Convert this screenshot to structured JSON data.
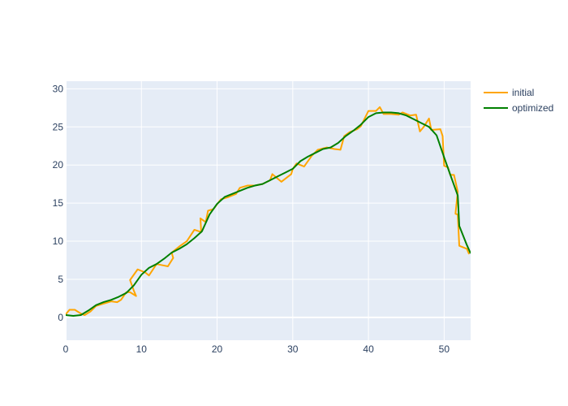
{
  "chart_data": {
    "type": "line",
    "title": "",
    "xlabel": "",
    "ylabel": "",
    "xlim": [
      0,
      53.5
    ],
    "ylim": [
      -3,
      31
    ],
    "x_ticks": [
      0,
      10,
      20,
      30,
      40,
      50
    ],
    "y_ticks": [
      0,
      5,
      10,
      15,
      20,
      25,
      30
    ],
    "grid": true,
    "legend_position": "top-right",
    "plot_background": "#e5ecf6",
    "series": [
      {
        "name": "initial",
        "color": "#ffa500",
        "points": [
          [
            0,
            0.4
          ],
          [
            0.5,
            1.0
          ],
          [
            1.2,
            1.0
          ],
          [
            2.0,
            0.5
          ],
          [
            2.5,
            0.3
          ],
          [
            3.3,
            0.8
          ],
          [
            4.0,
            1.5
          ],
          [
            5.0,
            1.8
          ],
          [
            6.0,
            2.1
          ],
          [
            6.8,
            2.0
          ],
          [
            7.3,
            2.3
          ],
          [
            8.0,
            3.3
          ],
          [
            8.5,
            3.3
          ],
          [
            9.3,
            2.8
          ],
          [
            9.0,
            3.5
          ],
          [
            8.5,
            4.9
          ],
          [
            9.5,
            6.3
          ],
          [
            10.5,
            5.9
          ],
          [
            11.0,
            5.5
          ],
          [
            12.0,
            7.0
          ],
          [
            13.0,
            6.8
          ],
          [
            13.5,
            6.7
          ],
          [
            14.2,
            7.8
          ],
          [
            14.0,
            8.5
          ],
          [
            15.0,
            9.3
          ],
          [
            16.0,
            10.0
          ],
          [
            17.0,
            11.5
          ],
          [
            17.9,
            11.2
          ],
          [
            17.8,
            13.0
          ],
          [
            18.5,
            12.5
          ],
          [
            18.8,
            14.0
          ],
          [
            19.5,
            14.2
          ],
          [
            20.5,
            15.5
          ],
          [
            21.5,
            15.8
          ],
          [
            22.5,
            16.2
          ],
          [
            23.0,
            17.0
          ],
          [
            24.0,
            17.3
          ],
          [
            25.0,
            17.3
          ],
          [
            26.0,
            17.5
          ],
          [
            27.0,
            18.0
          ],
          [
            27.3,
            18.8
          ],
          [
            28.5,
            17.8
          ],
          [
            29.8,
            18.8
          ],
          [
            30.0,
            19.5
          ],
          [
            30.5,
            20.2
          ],
          [
            31.0,
            20.0
          ],
          [
            31.5,
            19.8
          ],
          [
            32.5,
            21.2
          ],
          [
            33.3,
            22.0
          ],
          [
            34.5,
            22.3
          ],
          [
            35.5,
            22.1
          ],
          [
            36.3,
            22.0
          ],
          [
            36.8,
            23.8
          ],
          [
            37.5,
            24.3
          ],
          [
            38.5,
            24.7
          ],
          [
            39.0,
            25.1
          ],
          [
            40.0,
            27.1
          ],
          [
            41.0,
            27.1
          ],
          [
            41.5,
            27.6
          ],
          [
            42.0,
            26.7
          ],
          [
            43.0,
            26.7
          ],
          [
            44.0,
            26.6
          ],
          [
            44.5,
            26.9
          ],
          [
            45.5,
            26.5
          ],
          [
            46.3,
            26.6
          ],
          [
            46.8,
            24.4
          ],
          [
            47.3,
            25.0
          ],
          [
            48.0,
            26.1
          ],
          [
            48.3,
            24.6
          ],
          [
            49.5,
            24.7
          ],
          [
            49.8,
            23.8
          ],
          [
            50.0,
            19.9
          ],
          [
            50.5,
            19.7
          ],
          [
            50.8,
            18.7
          ],
          [
            51.3,
            18.7
          ],
          [
            51.8,
            16.5
          ],
          [
            51.5,
            13.6
          ],
          [
            51.8,
            13.5
          ],
          [
            52.0,
            9.4
          ],
          [
            53.0,
            9.0
          ],
          [
            53.3,
            8.3
          ]
        ]
      },
      {
        "name": "optimized",
        "color": "#008000",
        "points": [
          [
            0,
            0.3
          ],
          [
            1.0,
            0.2
          ],
          [
            2.0,
            0.3
          ],
          [
            3.0,
            0.9
          ],
          [
            4.0,
            1.6
          ],
          [
            5.0,
            2.0
          ],
          [
            6.0,
            2.3
          ],
          [
            7.0,
            2.7
          ],
          [
            8.0,
            3.2
          ],
          [
            9.0,
            4.2
          ],
          [
            10.0,
            5.6
          ],
          [
            11.0,
            6.5
          ],
          [
            12.0,
            7.0
          ],
          [
            13.0,
            7.7
          ],
          [
            14.0,
            8.5
          ],
          [
            15.0,
            9.0
          ],
          [
            16.0,
            9.6
          ],
          [
            17.0,
            10.4
          ],
          [
            18.0,
            11.3
          ],
          [
            19.0,
            13.5
          ],
          [
            20.0,
            14.9
          ],
          [
            21.0,
            15.8
          ],
          [
            22.0,
            16.2
          ],
          [
            23.0,
            16.6
          ],
          [
            24.0,
            17.0
          ],
          [
            25.0,
            17.3
          ],
          [
            26.0,
            17.5
          ],
          [
            27.0,
            18.0
          ],
          [
            28.0,
            18.5
          ],
          [
            29.0,
            19.0
          ],
          [
            30.0,
            19.5
          ],
          [
            31.0,
            20.5
          ],
          [
            32.0,
            21.1
          ],
          [
            33.0,
            21.6
          ],
          [
            34.0,
            22.1
          ],
          [
            35.0,
            22.3
          ],
          [
            36.0,
            22.9
          ],
          [
            37.0,
            23.8
          ],
          [
            38.0,
            24.5
          ],
          [
            39.0,
            25.3
          ],
          [
            40.0,
            26.3
          ],
          [
            41.0,
            26.8
          ],
          [
            42.0,
            26.9
          ],
          [
            43.0,
            26.9
          ],
          [
            44.0,
            26.8
          ],
          [
            45.0,
            26.5
          ],
          [
            46.0,
            26.0
          ],
          [
            47.0,
            25.5
          ],
          [
            48.0,
            25.0
          ],
          [
            49.0,
            23.9
          ],
          [
            50.0,
            21.0
          ],
          [
            51.0,
            18.2
          ],
          [
            51.8,
            16.0
          ],
          [
            52.0,
            12.0
          ],
          [
            53.0,
            9.5
          ],
          [
            53.5,
            8.4
          ]
        ]
      }
    ]
  }
}
